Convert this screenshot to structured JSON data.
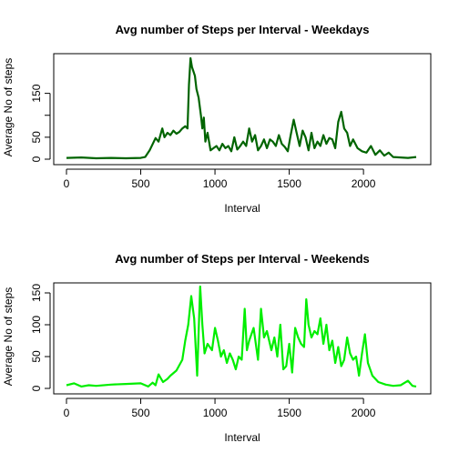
{
  "chart_data": [
    {
      "type": "line",
      "title": "Avg number of Steps per Interval - Weekdays",
      "xlabel": "Interval",
      "ylabel": "Average No of steps",
      "xlim": [
        0,
        2355
      ],
      "ylim": [
        0,
        230
      ],
      "xticks": [
        0,
        500,
        1000,
        1500,
        2000
      ],
      "yticks": [
        0,
        50,
        100,
        150
      ],
      "ytick_labels": [
        "0",
        "50",
        "",
        "150"
      ],
      "grid": false,
      "line_color": "#006400",
      "series": [
        {
          "x": [
            0,
            100,
            200,
            300,
            400,
            500,
            530,
            560,
            600,
            620,
            645,
            660,
            680,
            700,
            720,
            740,
            760,
            780,
            800,
            815,
            825,
            835,
            845,
            855,
            865,
            875,
            890,
            905,
            915,
            925,
            935,
            950,
            970,
            990,
            1010,
            1030,
            1050,
            1070,
            1090,
            1110,
            1130,
            1150,
            1170,
            1190,
            1210,
            1230,
            1250,
            1270,
            1290,
            1310,
            1330,
            1350,
            1370,
            1390,
            1410,
            1430,
            1450,
            1470,
            1490,
            1510,
            1530,
            1550,
            1570,
            1590,
            1610,
            1630,
            1650,
            1670,
            1690,
            1710,
            1730,
            1750,
            1770,
            1790,
            1810,
            1830,
            1850,
            1870,
            1890,
            1910,
            1930,
            1960,
            1990,
            2020,
            2050,
            2080,
            2110,
            2140,
            2170,
            2200,
            2250,
            2300,
            2355
          ],
          "y": [
            3,
            4,
            2,
            3,
            2,
            3,
            5,
            20,
            48,
            40,
            70,
            50,
            60,
            55,
            65,
            58,
            62,
            70,
            75,
            70,
            170,
            230,
            210,
            200,
            190,
            160,
            140,
            100,
            70,
            95,
            40,
            60,
            20,
            25,
            30,
            20,
            35,
            25,
            30,
            18,
            50,
            22,
            30,
            40,
            30,
            70,
            40,
            55,
            20,
            30,
            45,
            25,
            45,
            40,
            30,
            55,
            35,
            28,
            18,
            55,
            90,
            60,
            30,
            65,
            50,
            20,
            60,
            25,
            40,
            30,
            55,
            35,
            48,
            45,
            25,
            85,
            108,
            70,
            60,
            30,
            45,
            25,
            18,
            15,
            30,
            10,
            20,
            8,
            15,
            5,
            4,
            3,
            5
          ]
        }
      ]
    },
    {
      "type": "line",
      "title": "Avg number of Steps per Interval - Weekends",
      "xlabel": "Interval",
      "ylabel": "Average No of steps",
      "xlim": [
        0,
        2355
      ],
      "ylim": [
        0,
        160
      ],
      "xticks": [
        0,
        500,
        1000,
        1500,
        2000
      ],
      "yticks": [
        0,
        50,
        100,
        150
      ],
      "ytick_labels": [
        "0",
        "50",
        "100",
        "150"
      ],
      "grid": false,
      "line_color": "#00ee00",
      "series": [
        {
          "x": [
            0,
            50,
            100,
            150,
            200,
            300,
            400,
            500,
            550,
            580,
            600,
            620,
            650,
            680,
            700,
            740,
            780,
            800,
            820,
            840,
            860,
            880,
            900,
            915,
            930,
            950,
            980,
            1000,
            1020,
            1040,
            1060,
            1080,
            1100,
            1120,
            1140,
            1160,
            1180,
            1200,
            1215,
            1230,
            1260,
            1290,
            1310,
            1330,
            1350,
            1380,
            1400,
            1420,
            1440,
            1460,
            1480,
            1500,
            1520,
            1540,
            1560,
            1580,
            1600,
            1615,
            1630,
            1650,
            1670,
            1690,
            1710,
            1730,
            1750,
            1770,
            1790,
            1810,
            1830,
            1850,
            1870,
            1890,
            1910,
            1930,
            1950,
            1970,
            1990,
            2010,
            2030,
            2060,
            2100,
            2150,
            2200,
            2250,
            2300,
            2330,
            2355
          ],
          "y": [
            5,
            8,
            3,
            5,
            4,
            6,
            7,
            8,
            3,
            9,
            5,
            22,
            10,
            15,
            20,
            28,
            45,
            75,
            100,
            145,
            110,
            20,
            160,
            100,
            55,
            70,
            60,
            95,
            75,
            50,
            60,
            40,
            55,
            45,
            30,
            50,
            45,
            125,
            60,
            75,
            95,
            45,
            125,
            80,
            90,
            60,
            80,
            50,
            100,
            30,
            35,
            70,
            25,
            95,
            80,
            70,
            65,
            140,
            100,
            80,
            90,
            85,
            110,
            70,
            100,
            60,
            75,
            40,
            65,
            35,
            45,
            80,
            55,
            45,
            50,
            20,
            55,
            85,
            40,
            20,
            10,
            6,
            4,
            5,
            12,
            4,
            3
          ]
        }
      ]
    }
  ]
}
